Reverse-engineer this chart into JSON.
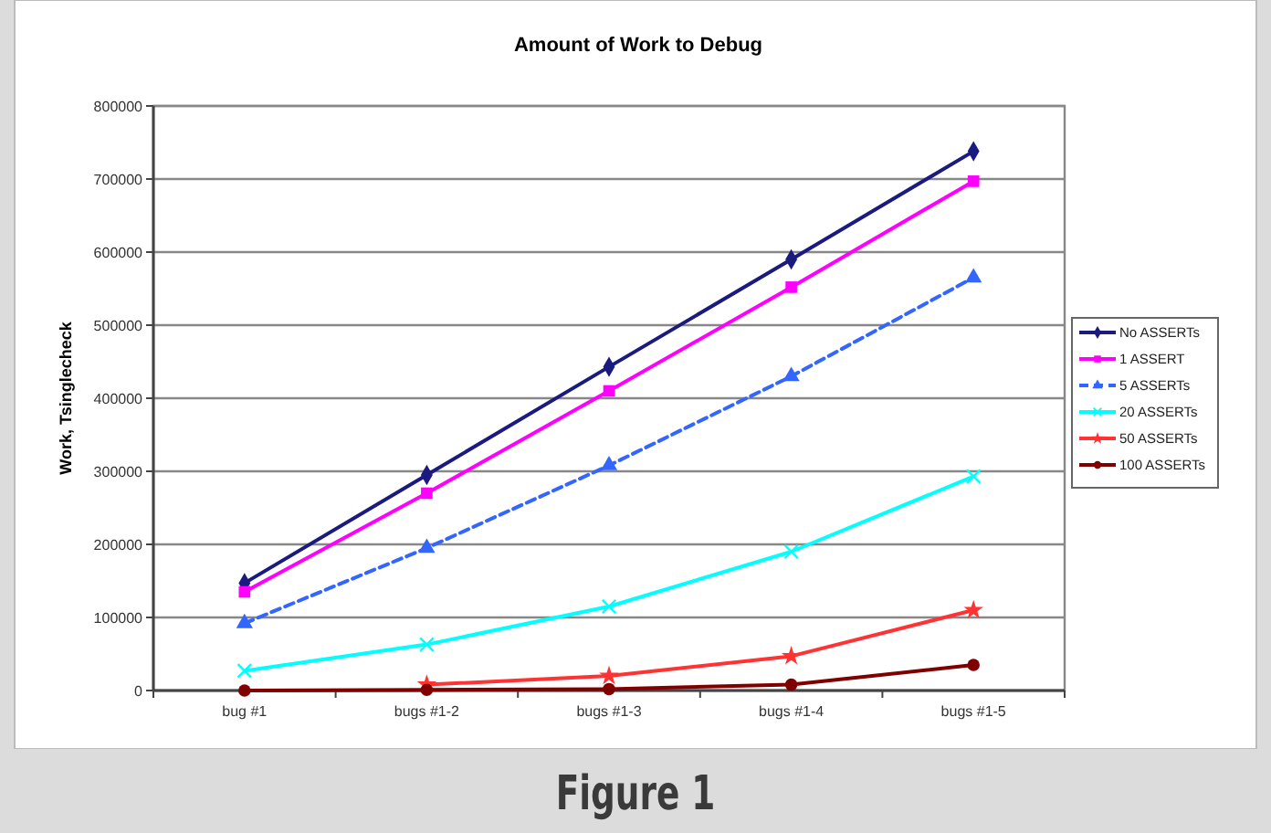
{
  "chart_data": {
    "type": "line",
    "title": "Amount  of Work to Debug",
    "ylabel": "Work, Tsinglecheck",
    "categories": [
      "bug #1",
      "bugs #1-2",
      "bugs #1-3",
      "bugs #1-4",
      "bugs #1-5"
    ],
    "ylim": [
      0,
      800000
    ],
    "yticks": [
      0,
      100000,
      200000,
      300000,
      400000,
      500000,
      600000,
      700000,
      800000
    ],
    "grid": "y",
    "legend": "right",
    "annotations": [
      "Figure 1"
    ],
    "series": [
      {
        "name": "No ASSERTs",
        "color": "#1a1a80",
        "marker": "diamond",
        "values": [
          147000,
          295000,
          443000,
          590000,
          738000
        ]
      },
      {
        "name": "1 ASSERT",
        "color": "#ff00ff",
        "marker": "square",
        "values": [
          135000,
          270000,
          410000,
          552000,
          697000
        ]
      },
      {
        "name": "5 ASSERTs",
        "color": "#3366ff",
        "marker": "triangle",
        "line_style": "dashed",
        "values": [
          92000,
          195000,
          308000,
          430000,
          565000
        ]
      },
      {
        "name": "20 ASSERTs",
        "color": "#00ffff",
        "marker": "cross",
        "values": [
          27000,
          63000,
          115000,
          190000,
          293000
        ]
      },
      {
        "name": "50 ASSERTs",
        "color": "#ff3333",
        "marker": "star",
        "values": [
          null,
          8000,
          20000,
          47000,
          110000
        ]
      },
      {
        "name": "100 ASSERTs",
        "color": "#800000",
        "marker": "circle",
        "values": [
          0,
          1000,
          2000,
          8000,
          35000
        ]
      }
    ]
  }
}
